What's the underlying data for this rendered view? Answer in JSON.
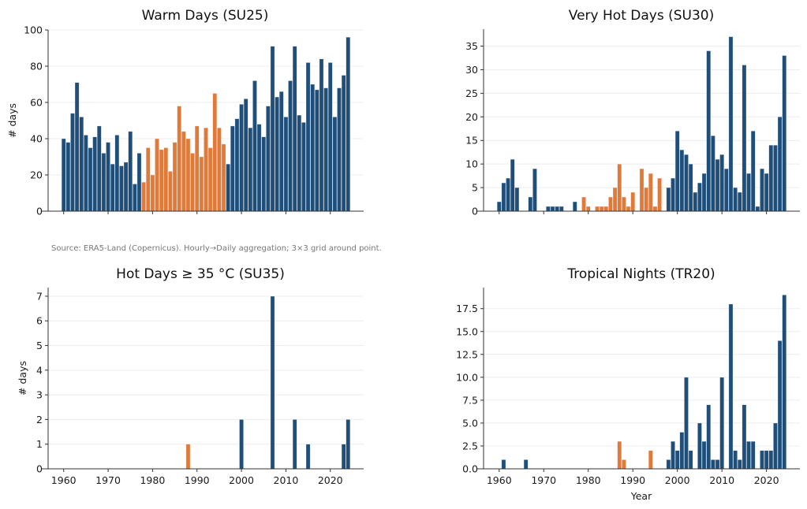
{
  "colors": {
    "normal": "#1F4E79",
    "highlight": "#E07A3A",
    "grid": "#ECECEC"
  },
  "highlight_period": [
    1978,
    1996
  ],
  "source_note": "Source: ERA5-Land (Copernicus). Hourly→Daily aggregation; 3×3 grid around point.",
  "chart_data": [
    {
      "id": "su25",
      "type": "bar",
      "title": "Warm Days (SU25)",
      "xlabel": "",
      "ylabel": "# days",
      "x_start": 1960,
      "x_end": 2024,
      "xlim": [
        1956.5,
        2027.5
      ],
      "ylim": [
        0,
        100
      ],
      "yticks": [
        0,
        20,
        40,
        60,
        80,
        100
      ],
      "ytick_labels": [
        "0",
        "20",
        "40",
        "60",
        "80",
        "100"
      ],
      "xticks": [
        1960,
        1970,
        1980,
        1990,
        2000,
        2010,
        2020
      ],
      "xtick_labels": [
        "",
        "",
        "",
        "",
        "",
        "",
        ""
      ],
      "grid": "y",
      "values": [
        40,
        38,
        54,
        71,
        52,
        42,
        35,
        41,
        47,
        32,
        38,
        26,
        42,
        25,
        27,
        44,
        15,
        32,
        16,
        35,
        20,
        40,
        34,
        35,
        22,
        38,
        58,
        44,
        40,
        32,
        47,
        30,
        46,
        35,
        65,
        46,
        37,
        26,
        47,
        51,
        59,
        62,
        46,
        72,
        48,
        41,
        58,
        91,
        63,
        66,
        52,
        72,
        91,
        53,
        49,
        82,
        70,
        67,
        84,
        68,
        82,
        52,
        68,
        75,
        96
      ]
    },
    {
      "id": "su30",
      "type": "bar",
      "title": "Very Hot Days (SU30)",
      "xlabel": "",
      "ylabel": "",
      "x_start": 1960,
      "x_end": 2024,
      "xlim": [
        1956.5,
        2027.5
      ],
      "ylim": [
        0,
        38.6
      ],
      "yticks": [
        0,
        5,
        10,
        15,
        20,
        25,
        30,
        35
      ],
      "ytick_labels": [
        "0",
        "5",
        "10",
        "15",
        "20",
        "25",
        "30",
        "35"
      ],
      "xticks": [
        1960,
        1970,
        1980,
        1990,
        2000,
        2010,
        2020
      ],
      "xtick_labels": [
        "",
        "",
        "",
        "",
        "",
        "",
        ""
      ],
      "grid": "y",
      "values": [
        2,
        6,
        7,
        11,
        5,
        0,
        0,
        3,
        9,
        0,
        0,
        1,
        1,
        1,
        1,
        0,
        0,
        2,
        0,
        3,
        1,
        0,
        1,
        1,
        1,
        3,
        5,
        10,
        3,
        1,
        4,
        0,
        9,
        5,
        8,
        1,
        7,
        0,
        5,
        7,
        17,
        13,
        12,
        10,
        4,
        6,
        8,
        34,
        16,
        11,
        12,
        9,
        37,
        5,
        4,
        31,
        8,
        17,
        1,
        9,
        8,
        14,
        14,
        20,
        33
      ]
    },
    {
      "id": "su35",
      "type": "bar",
      "title": "Hot Days ≥ 35 °C (SU35)",
      "xlabel": "",
      "ylabel": "# days",
      "x_start": 1960,
      "x_end": 2024,
      "xlim": [
        1956.5,
        2027.5
      ],
      "ylim": [
        0,
        7.35
      ],
      "yticks": [
        0,
        1,
        2,
        3,
        4,
        5,
        6,
        7
      ],
      "ytick_labels": [
        "0",
        "1",
        "2",
        "3",
        "4",
        "5",
        "6",
        "7"
      ],
      "xticks": [
        1960,
        1970,
        1980,
        1990,
        2000,
        2010,
        2020
      ],
      "xtick_labels": [
        "1960",
        "1970",
        "1980",
        "1990",
        "2000",
        "2010",
        "2020"
      ],
      "grid": "y",
      "values": [
        0,
        0,
        0,
        0,
        0,
        0,
        0,
        0,
        0,
        0,
        0,
        0,
        0,
        0,
        0,
        0,
        0,
        0,
        0,
        0,
        0,
        0,
        0,
        0,
        0,
        0,
        0,
        0,
        1,
        0,
        0,
        0,
        0,
        0,
        0,
        0,
        0,
        0,
        0,
        0,
        2,
        0,
        0,
        0,
        0,
        0,
        0,
        7,
        0,
        0,
        0,
        0,
        2,
        0,
        0,
        1,
        0,
        0,
        0,
        0,
        0,
        0,
        0,
        1,
        2
      ]
    },
    {
      "id": "tr20",
      "type": "bar",
      "title": "Tropical Nights (TR20)",
      "xlabel": "Year",
      "ylabel": "",
      "x_start": 1960,
      "x_end": 2024,
      "xlim": [
        1956.5,
        2027.5
      ],
      "ylim": [
        0,
        19.8
      ],
      "yticks": [
        0,
        2.5,
        5,
        7.5,
        10,
        12.5,
        15,
        17.5
      ],
      "ytick_labels": [
        "0.0",
        "2.5",
        "5.0",
        "7.5",
        "10.0",
        "12.5",
        "15.0",
        "17.5"
      ],
      "xticks": [
        1960,
        1970,
        1980,
        1990,
        2000,
        2010,
        2020
      ],
      "xtick_labels": [
        "1960",
        "1970",
        "1980",
        "1990",
        "2000",
        "2010",
        "2020"
      ],
      "grid": "y",
      "values": [
        0,
        1,
        0,
        0,
        0,
        0,
        1,
        0,
        0,
        0,
        0,
        0,
        0,
        0,
        0,
        0,
        0,
        0,
        0,
        0,
        0,
        0,
        0,
        0,
        0,
        0,
        0,
        3,
        1,
        0,
        0,
        0,
        0,
        0,
        2,
        0,
        0,
        0,
        1,
        3,
        2,
        4,
        10,
        2,
        0,
        5,
        3,
        7,
        1,
        1,
        10,
        0,
        18,
        2,
        1,
        7,
        3,
        3,
        0,
        2,
        2,
        2,
        5,
        14,
        19
      ]
    }
  ]
}
